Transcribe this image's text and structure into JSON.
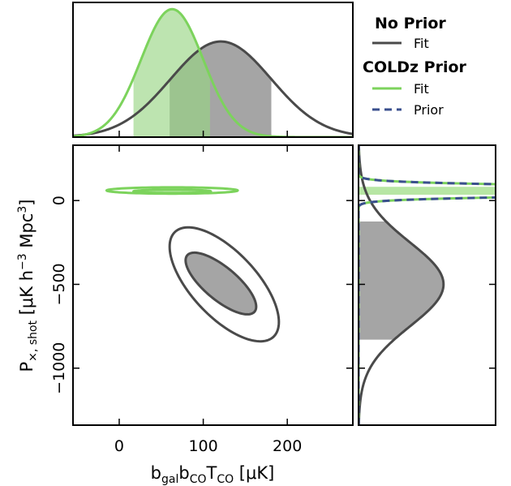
{
  "chart_data": {
    "type": "corner",
    "colors": {
      "no_prior": "#4a4a4a",
      "no_prior_fill": "#a5a5a5",
      "coldz": "#7cd35c",
      "coldz_fill": "#b7e6a4",
      "prior": "#3a4f8e"
    },
    "legend": {
      "group1_title": "No Prior",
      "group1_fit": "Fit",
      "group2_title": "COLDz Prior",
      "group2_fit": "Fit",
      "group2_prior": "Prior"
    },
    "xlabel": "b_gal b_CO T_CO [μK]",
    "ylabel": "P_×,shot [μK h⁻³ Mpc³]",
    "xlim": [
      -55,
      278
    ],
    "ylim": [
      -1340,
      330
    ],
    "x_ticks": [
      "0",
      "100",
      "200"
    ],
    "x_tick_values": [
      0,
      100,
      200
    ],
    "y_ticks": [
      "0",
      "−500",
      "−1000"
    ],
    "y_tick_values": [
      0,
      -500,
      -1000
    ],
    "no_prior_fit": {
      "x_mean": 121,
      "x_sigma": 60,
      "x_band": [
        60,
        181
      ],
      "y_mean": -500,
      "y_sigma": 250,
      "y_band": [
        -125,
        -830
      ],
      "ellipse_1sigma": {
        "cx": 121,
        "cy": -495,
        "sx": 42,
        "sy": 184,
        "rho": -0.75
      },
      "ellipse_2sigma": {
        "cx": 125,
        "cy": -500,
        "sx": 65,
        "sy": 340,
        "rho": -0.66
      }
    },
    "coldz_fit": {
      "x_mean": 63,
      "x_sigma": 37,
      "x_band": [
        17,
        108
      ],
      "y_mean": 58,
      "y_sigma": 25,
      "y_band": [
        35,
        82
      ],
      "ellipse_1sigma": {
        "cx": 63,
        "cy": 55,
        "rx": 46,
        "ry": 10
      },
      "ellipse_2sigma": {
        "cx": 63,
        "cy": 60,
        "rx": 78,
        "ry": 19
      }
    },
    "coldz_prior": {
      "y_mean": 58,
      "y_sigma": 25
    }
  }
}
